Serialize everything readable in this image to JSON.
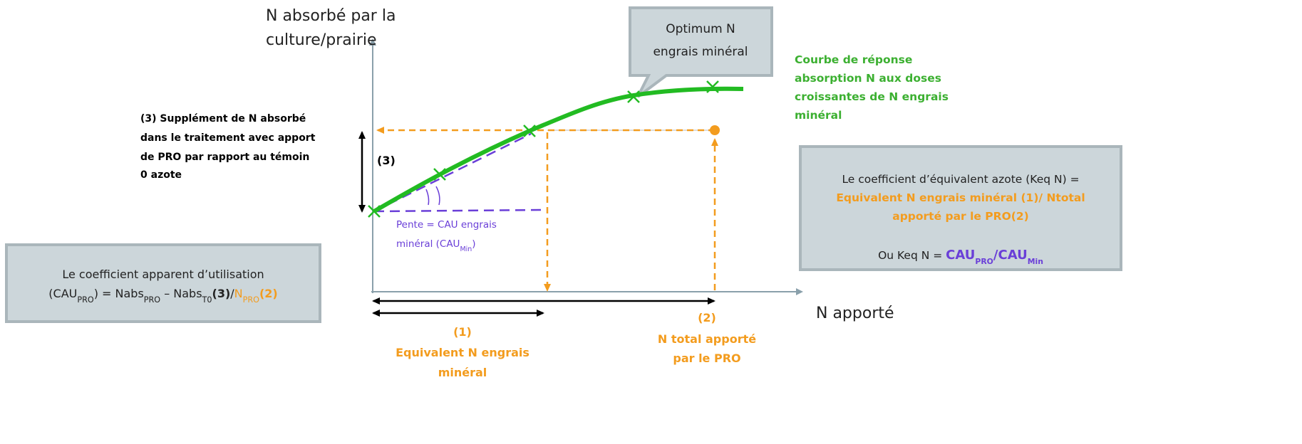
{
  "y_axis_label": [
    "N absorbé par la",
    "culture/prairie"
  ],
  "x_axis_label": "N apporté",
  "callout": [
    "Optimum N",
    "engrais minéral"
  ],
  "curve_label": [
    "Courbe de réponse",
    "absorption N aux doses",
    "croissantes de N engrais",
    "minéral"
  ],
  "supplement_note": [
    "(3) Supplément de N absorbé",
    "dans le traitement avec apport",
    "de PRO par rapport au témoin",
    "0 azote"
  ],
  "bracket_3": "(3)",
  "slope_label": {
    "line1": "Pente = CAU engrais",
    "line2": [
      "minéral (CAU",
      "Min",
      ")"
    ]
  },
  "left_box": {
    "line1": "Le coefficient apparent d’utilisation",
    "line2": [
      "(CAU",
      "PRO",
      ") = Nabs",
      "PRO",
      " – Nabs",
      "T0",
      "(3)",
      "/",
      "N",
      "PRO",
      "(2)"
    ]
  },
  "right_box": {
    "line1": "Le coefficient d’équivalent azote (Keq N) =",
    "line2": "Equivalent N engrais minéral (1)/ Ntotal",
    "line3": "apporté par le PRO(2)",
    "line4": [
      "Ou Keq N = ",
      "CAU",
      "PRO",
      "/",
      "CAU",
      "Min"
    ]
  },
  "label_1": [
    "(1)",
    "Equivalent N engrais",
    "minéral"
  ],
  "label_2": [
    "(2)",
    "N total apporté",
    "par le PRO"
  ]
}
